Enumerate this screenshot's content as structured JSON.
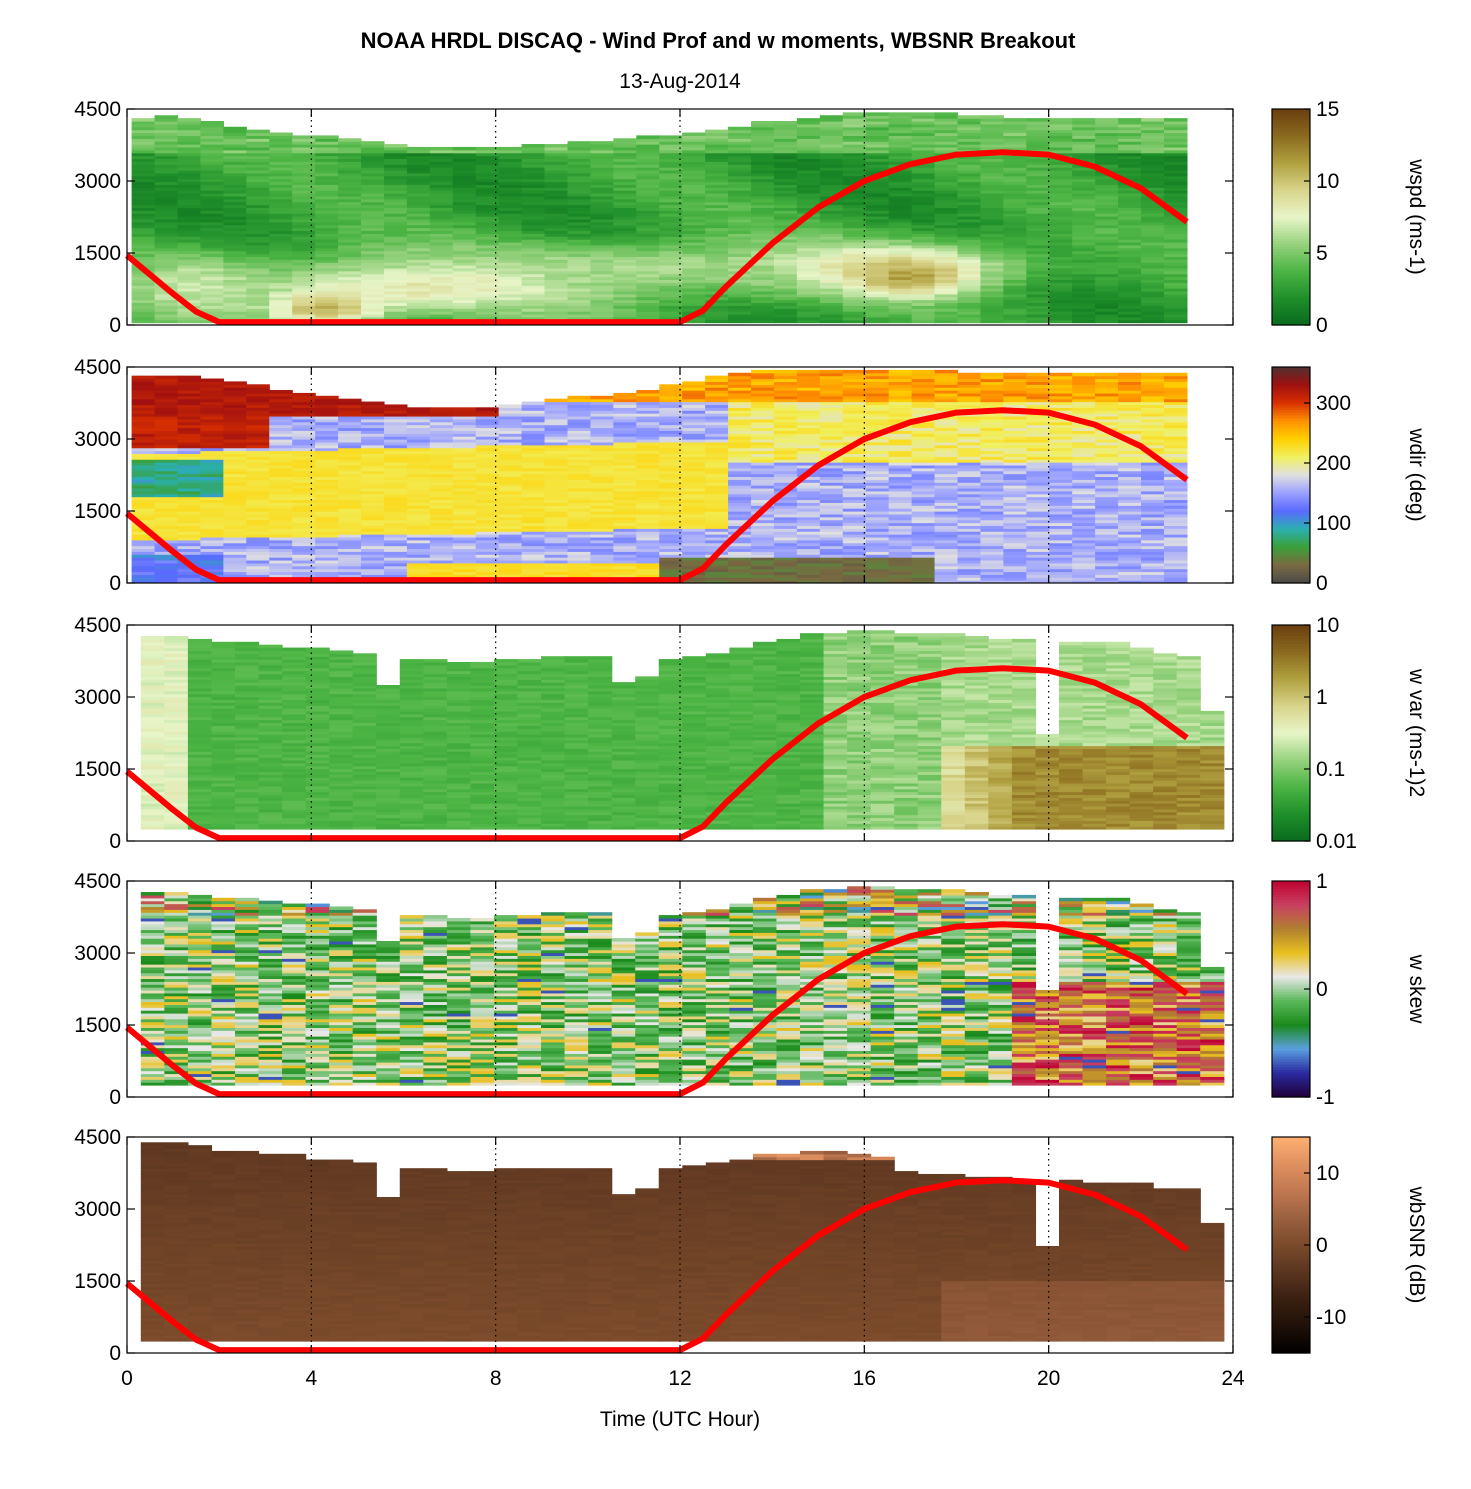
{
  "chart_data": {
    "type": "heatmap",
    "title": "NOAA HRDL DISCAQ - Wind Prof and w moments, WBSNR Breakout",
    "subtitle": "13-Aug-2014",
    "xlabel": "Time (UTC Hour)",
    "xlim": [
      0,
      24
    ],
    "x_ticks": [
      0,
      4,
      8,
      12,
      16,
      20,
      24
    ],
    "x_tick_labels": [
      "0",
      "4",
      "8",
      "12",
      "16",
      "20",
      "24"
    ],
    "ylim": [
      0,
      4500
    ],
    "y_ticks": [
      0,
      1500,
      3000,
      4500
    ],
    "y_tick_labels": [
      "0",
      "1500",
      "3000",
      "4500"
    ],
    "grid": "dotted vertical lines at 4, 8, 12, 16, 20, 24",
    "overlay_line": {
      "color": "#ff0000",
      "x": [
        0,
        0.5,
        1,
        1.5,
        2,
        12,
        12.5,
        13,
        14,
        15,
        16,
        17,
        18,
        19,
        20,
        21,
        22,
        23
      ],
      "y": [
        1450,
        1050,
        650,
        280,
        60,
        60,
        300,
        800,
        1700,
        2450,
        3000,
        3350,
        3550,
        3600,
        3550,
        3300,
        2850,
        2150
      ]
    },
    "panels": [
      {
        "colorbar_label": "wspd (ms-1)",
        "colorbar_ticks": [
          "0",
          "5",
          "10",
          "15"
        ],
        "colorbar_range": [
          0,
          15
        ],
        "colorbar_colors": [
          "#0a6b1e",
          "#1f8f2a",
          "#4cb544",
          "#97d27e",
          "#e8f5c8",
          "#d8d48a",
          "#b0a040",
          "#8a6a1e",
          "#6a3e10"
        ],
        "x_start": 0.1,
        "x_end": 23.0,
        "top_edge": [
          4300,
          4320,
          4280,
          4200,
          4100,
          4050,
          4000,
          3950,
          3900,
          3850,
          3800,
          3750,
          3700,
          3700,
          3700,
          3700,
          3700,
          3750,
          3750,
          3800,
          3800,
          3850,
          3900,
          3950,
          4000,
          4050,
          4100,
          4200,
          4250,
          4300,
          4350,
          4400,
          4400,
          4400,
          4400,
          4400,
          4350,
          4350,
          4300,
          4300,
          4300,
          4300,
          4300,
          4300,
          4300,
          4300
        ],
        "bottom_edge": 50,
        "features": [
          {
            "x": 6.5,
            "y": 800,
            "sx": 3.0,
            "sy": 450,
            "v": 0.55
          },
          {
            "x": 16.5,
            "y": 1200,
            "sx": 2.0,
            "sy": 400,
            "v": 0.6
          },
          {
            "x": 4.3,
            "y": 350,
            "sx": 0.8,
            "sy": 250,
            "v": 0.7
          },
          {
            "x": 17.0,
            "y": 1000,
            "sx": 0.8,
            "sy": 250,
            "v": 0.75
          },
          {
            "x": 11.0,
            "y": 1200,
            "sx": 4.0,
            "sy": 400,
            "v": 0.4
          },
          {
            "x": 1.5,
            "y": 800,
            "sx": 1.0,
            "sy": 500,
            "v": 0.45
          }
        ],
        "base_value": 0.18,
        "overlay_line": true
      },
      {
        "colorbar_label": "wdir (deg)",
        "colorbar_ticks": [
          "0",
          "100",
          "200",
          "300"
        ],
        "colorbar_range": [
          0,
          360
        ],
        "colorbar_colors": [
          "#4a4a4a",
          "#7a6a40",
          "#3aa03a",
          "#2ab0b0",
          "#5a6aff",
          "#9aa0ff",
          "#e0e0e0",
          "#f0f060",
          "#ffd000",
          "#ff9000",
          "#d83000",
          "#a01010",
          "#503030"
        ],
        "x_start": 0.1,
        "x_end": 23.0,
        "top_edge": [
          4300,
          4300,
          4300,
          4250,
          4200,
          4100,
          4000,
          3950,
          3900,
          3800,
          3750,
          3700,
          3650,
          3650,
          3650,
          3650,
          3700,
          3750,
          3800,
          3850,
          3900,
          3950,
          4000,
          4100,
          4200,
          4300,
          4350,
          4400,
          4400,
          4400,
          4400,
          4400,
          4400,
          4400,
          4400,
          4400,
          4350,
          4350,
          4350,
          4350,
          4350,
          4350,
          4350,
          4350,
          4350,
          4350
        ],
        "bottom_edge": 0,
        "bands": "upper red (290-340) early, yellow (210-240) midday band, blue (120-160) lower, dark brown near surface 12-17 UTC",
        "overlay_line": true
      },
      {
        "colorbar_label": "w var (ms-1)2",
        "colorbar_ticks": [
          "0.01",
          "0.1",
          "1",
          "10"
        ],
        "colorbar_range": [
          0.01,
          10
        ],
        "colorbar_scale": "log",
        "colorbar_colors": [
          "#0a6b1e",
          "#1f8f2a",
          "#4cb544",
          "#97d27e",
          "#e8f5c8",
          "#d8d48a",
          "#b0a040",
          "#8a6a1e",
          "#6a3e10"
        ],
        "x_start": 0.3,
        "x_end": 23.8,
        "top_edge": [
          4250,
          4250,
          4200,
          4100,
          4100,
          4050,
          4000,
          4000,
          3950,
          3900,
          3250,
          3750,
          3750,
          3700,
          3700,
          3750,
          3750,
          3800,
          3800,
          3800,
          3300,
          3400,
          3750,
          3850,
          3900,
          4000,
          4100,
          4200,
          4300,
          4300,
          4350,
          4350,
          4300,
          4300,
          4300,
          4250,
          4200,
          4200,
          2200,
          4150,
          4100,
          4100,
          4000,
          3900,
          3800,
          2700
        ],
        "bottom_edge": 250,
        "overlay_line": true
      },
      {
        "colorbar_label": "w skew",
        "colorbar_ticks": [
          "-1",
          "0",
          "1"
        ],
        "colorbar_range": [
          -1,
          1
        ],
        "colorbar_colors": [
          "#20003a",
          "#2a2aa0",
          "#5aa0e0",
          "#1a8a1a",
          "#5ab85a",
          "#e8e8e8",
          "#e8c020",
          "#b08030",
          "#c84060",
          "#c00030"
        ],
        "x_start": 0.3,
        "x_end": 23.8,
        "top_edge": [
          4250,
          4250,
          4200,
          4100,
          4100,
          4050,
          4000,
          4000,
          3950,
          3900,
          3250,
          3750,
          3750,
          3700,
          3700,
          3750,
          3750,
          3800,
          3800,
          3800,
          3300,
          3400,
          3750,
          3850,
          3900,
          4000,
          4100,
          4200,
          4300,
          4300,
          4350,
          4350,
          4300,
          4300,
          4300,
          4250,
          4200,
          4200,
          2200,
          4150,
          4100,
          4100,
          4000,
          3900,
          3800,
          2700
        ],
        "bottom_edge": 250,
        "overlay_line": true
      },
      {
        "colorbar_label": "wbSNR (dB)",
        "colorbar_ticks": [
          "-10",
          "0",
          "10"
        ],
        "colorbar_range": [
          -15,
          15
        ],
        "colorbar_colors": [
          "#000000",
          "#201008",
          "#3a2010",
          "#5a3520",
          "#7a4a2a",
          "#9a6040",
          "#c07850",
          "#e09060",
          "#ffb070"
        ],
        "x_start": 0.3,
        "x_end": 23.8,
        "top_edge": [
          4350,
          4350,
          4300,
          4200,
          4200,
          4150,
          4100,
          4000,
          4000,
          3950,
          3200,
          3800,
          3800,
          3750,
          3750,
          3800,
          3800,
          3850,
          3850,
          3800,
          3300,
          3400,
          3850,
          3900,
          3950,
          4000,
          4100,
          4150,
          4200,
          4200,
          4100,
          4050,
          3750,
          3700,
          3700,
          3650,
          3650,
          3600,
          2200,
          3600,
          3550,
          3500,
          3500,
          3400,
          3400,
          2700
        ],
        "bottom_edge": 250,
        "overlay_line": true
      }
    ]
  }
}
